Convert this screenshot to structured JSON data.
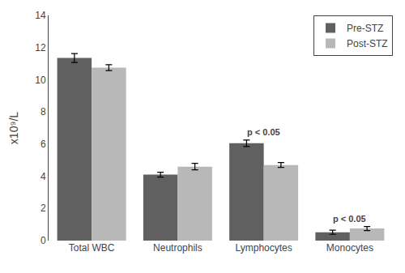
{
  "chart_data": {
    "type": "bar",
    "categories": [
      "Total WBC",
      "Neutrophils",
      "Lymphocytes",
      "Monocytes"
    ],
    "series": [
      {
        "name": "Pre-STZ",
        "color": "#606060",
        "values": [
          11.35,
          4.1,
          6.05,
          0.52
        ],
        "errors": [
          0.28,
          0.15,
          0.2,
          0.13
        ]
      },
      {
        "name": "Post-STZ",
        "color": "#b8b8b8",
        "values": [
          10.75,
          4.6,
          4.7,
          0.75
        ],
        "errors": [
          0.18,
          0.2,
          0.15,
          0.13
        ]
      }
    ],
    "ylabel": "x10⁹/L",
    "ylim": [
      0,
      14
    ],
    "yticks": [
      0,
      2,
      4,
      6,
      8,
      10,
      12,
      14
    ],
    "annotations": [
      {
        "text": "p < 0.05",
        "category": "Lymphocytes"
      },
      {
        "text": "p < 0.05",
        "category": "Monocytes"
      }
    ],
    "grid": false,
    "legend": "upper right"
  }
}
